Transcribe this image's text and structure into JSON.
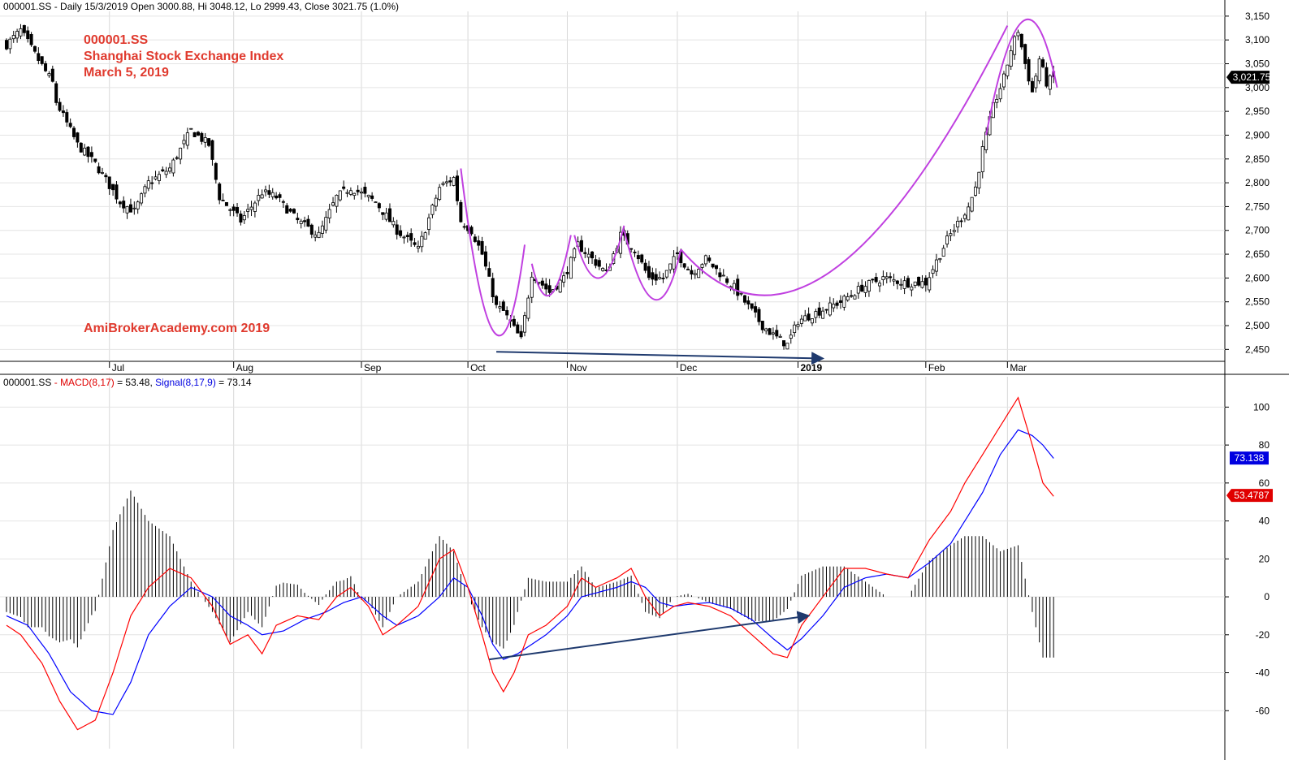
{
  "price_header": {
    "symbol": "000001.SS",
    "text": " - Daily 15/3/2019 Open 3000.88, Hi 3048.12, Lo 2999.43, Close 3021.75 (1.0%)"
  },
  "macd_header": {
    "symbol": "000001.SS",
    "dash": " - ",
    "macd": "MACD(8,17)",
    "macd_value": " = 53.48, ",
    "signal": "Signal(8,17,9)",
    "signal_value": " = 73.14"
  },
  "annotation": {
    "line1": "000001.SS",
    "line2": "Shanghai Stock Exchange Index",
    "line3": "March 5, 2019",
    "watermark": "AmiBrokerAcademy.com  2019"
  },
  "colors": {
    "annotation_red": "#e03a2e",
    "pattern_purple": "#c040e0",
    "trend_navy": "#1f3a6e",
    "macd_red": "#ff0000",
    "signal_blue": "#0000ff"
  },
  "chart_data": [
    {
      "type": "candlestick",
      "months": [
        "Jul",
        "Aug",
        "Sep",
        "Oct",
        "Nov",
        "Dec",
        "2019",
        "Feb",
        "Mar"
      ],
      "y_ticks": [
        2450,
        2500,
        2550,
        2600,
        2650,
        2700,
        2750,
        2800,
        2850,
        2900,
        2950,
        3000,
        3050,
        3100,
        3150
      ],
      "ylim": [
        2425,
        3160
      ],
      "last_close": 3021.75,
      "last_label": "3,021.75",
      "close_anchors": [
        [
          0,
          3090
        ],
        [
          4,
          3120
        ],
        [
          8,
          3070
        ],
        [
          13,
          3010
        ],
        [
          14,
          2970
        ],
        [
          20,
          2880
        ],
        [
          25,
          2840
        ],
        [
          32,
          2760
        ],
        [
          36,
          2740
        ],
        [
          40,
          2800
        ],
        [
          46,
          2830
        ],
        [
          52,
          2910
        ],
        [
          57,
          2880
        ],
        [
          60,
          2770
        ],
        [
          66,
          2720
        ],
        [
          72,
          2780
        ],
        [
          76,
          2770
        ],
        [
          82,
          2720
        ],
        [
          88,
          2690
        ],
        [
          93,
          2770
        ],
        [
          97,
          2790
        ],
        [
          104,
          2760
        ],
        [
          110,
          2700
        ],
        [
          116,
          2660
        ],
        [
          122,
          2790
        ],
        [
          126,
          2810
        ],
        [
          128,
          2720
        ],
        [
          131,
          2700
        ],
        [
          134,
          2650
        ],
        [
          138,
          2540
        ],
        [
          140,
          2530
        ],
        [
          145,
          2470
        ],
        [
          148,
          2610
        ],
        [
          153,
          2570
        ],
        [
          157,
          2600
        ],
        [
          161,
          2670
        ],
        [
          165,
          2640
        ],
        [
          169,
          2610
        ],
        [
          173,
          2690
        ],
        [
          177,
          2660
        ],
        [
          181,
          2600
        ],
        [
          185,
          2600
        ],
        [
          189,
          2650
        ],
        [
          193,
          2610
        ],
        [
          197,
          2640
        ],
        [
          201,
          2610
        ],
        [
          205,
          2580
        ],
        [
          209,
          2540
        ],
        [
          213,
          2500
        ],
        [
          216,
          2480
        ],
        [
          220,
          2460
        ],
        [
          223,
          2510
        ],
        [
          229,
          2530
        ],
        [
          235,
          2550
        ],
        [
          241,
          2580
        ],
        [
          247,
          2600
        ],
        [
          253,
          2590
        ],
        [
          259,
          2590
        ],
        [
          265,
          2680
        ],
        [
          271,
          2750
        ],
        [
          273,
          2790
        ],
        [
          275,
          2870
        ],
        [
          278,
          2960
        ],
        [
          281,
          3020
        ],
        [
          283,
          3080
        ],
        [
          285,
          3120
        ],
        [
          287,
          3050
        ],
        [
          289,
          2990
        ],
        [
          291,
          3060
        ],
        [
          293,
          3010
        ],
        [
          295,
          3022
        ]
      ],
      "macd_series": {
        "macd": [
          [
            0,
            -15
          ],
          [
            4,
            -20
          ],
          [
            10,
            -35
          ],
          [
            15,
            -55
          ],
          [
            20,
            -70
          ],
          [
            25,
            -65
          ],
          [
            30,
            -40
          ],
          [
            35,
            -10
          ],
          [
            40,
            5
          ],
          [
            46,
            15
          ],
          [
            52,
            10
          ],
          [
            58,
            -5
          ],
          [
            63,
            -25
          ],
          [
            68,
            -20
          ],
          [
            72,
            -30
          ],
          [
            76,
            -15
          ],
          [
            82,
            -10
          ],
          [
            88,
            -12
          ],
          [
            93,
            0
          ],
          [
            97,
            5
          ],
          [
            102,
            -5
          ],
          [
            106,
            -20
          ],
          [
            110,
            -15
          ],
          [
            116,
            -5
          ],
          [
            122,
            20
          ],
          [
            126,
            25
          ],
          [
            130,
            5
          ],
          [
            134,
            -20
          ],
          [
            137,
            -40
          ],
          [
            140,
            -50
          ],
          [
            143,
            -40
          ],
          [
            147,
            -20
          ],
          [
            152,
            -15
          ],
          [
            158,
            -5
          ],
          [
            162,
            10
          ],
          [
            166,
            5
          ],
          [
            172,
            10
          ],
          [
            176,
            15
          ],
          [
            180,
            0
          ],
          [
            184,
            -10
          ],
          [
            188,
            -5
          ],
          [
            192,
            -3
          ],
          [
            198,
            -5
          ],
          [
            204,
            -10
          ],
          [
            210,
            -20
          ],
          [
            216,
            -30
          ],
          [
            220,
            -32
          ],
          [
            224,
            -15
          ],
          [
            230,
            0
          ],
          [
            236,
            15
          ],
          [
            242,
            15
          ],
          [
            248,
            12
          ],
          [
            254,
            10
          ],
          [
            260,
            30
          ],
          [
            266,
            45
          ],
          [
            270,
            60
          ],
          [
            275,
            75
          ],
          [
            280,
            90
          ],
          [
            285,
            105
          ],
          [
            289,
            80
          ],
          [
            292,
            60
          ],
          [
            295,
            53
          ]
        ],
        "signal": [
          [
            0,
            -10
          ],
          [
            6,
            -15
          ],
          [
            12,
            -30
          ],
          [
            18,
            -50
          ],
          [
            24,
            -60
          ],
          [
            30,
            -62
          ],
          [
            35,
            -45
          ],
          [
            40,
            -20
          ],
          [
            46,
            -5
          ],
          [
            52,
            5
          ],
          [
            58,
            0
          ],
          [
            63,
            -10
          ],
          [
            68,
            -15
          ],
          [
            72,
            -20
          ],
          [
            78,
            -18
          ],
          [
            84,
            -12
          ],
          [
            90,
            -8
          ],
          [
            95,
            -3
          ],
          [
            100,
            0
          ],
          [
            106,
            -10
          ],
          [
            110,
            -15
          ],
          [
            116,
            -10
          ],
          [
            122,
            0
          ],
          [
            126,
            10
          ],
          [
            130,
            5
          ],
          [
            134,
            -10
          ],
          [
            137,
            -25
          ],
          [
            140,
            -33
          ],
          [
            144,
            -30
          ],
          [
            148,
            -25
          ],
          [
            152,
            -20
          ],
          [
            158,
            -10
          ],
          [
            162,
            0
          ],
          [
            166,
            2
          ],
          [
            172,
            5
          ],
          [
            176,
            8
          ],
          [
            180,
            5
          ],
          [
            184,
            -3
          ],
          [
            188,
            -5
          ],
          [
            192,
            -4
          ],
          [
            198,
            -3
          ],
          [
            204,
            -6
          ],
          [
            210,
            -12
          ],
          [
            216,
            -22
          ],
          [
            220,
            -28
          ],
          [
            224,
            -22
          ],
          [
            230,
            -10
          ],
          [
            236,
            5
          ],
          [
            242,
            10
          ],
          [
            248,
            12
          ],
          [
            254,
            10
          ],
          [
            260,
            18
          ],
          [
            266,
            28
          ],
          [
            270,
            40
          ],
          [
            275,
            55
          ],
          [
            280,
            75
          ],
          [
            285,
            88
          ],
          [
            289,
            85
          ],
          [
            292,
            80
          ],
          [
            295,
            73
          ]
        ],
        "y_ticks": [
          -60,
          -40,
          -20,
          0,
          20,
          40,
          60,
          80,
          100
        ],
        "ylim": [
          -80,
          110
        ],
        "macd_label": "53.4787",
        "signal_label": "73.138",
        "last_macd": 53.48,
        "last_signal": 73.14
      }
    }
  ]
}
